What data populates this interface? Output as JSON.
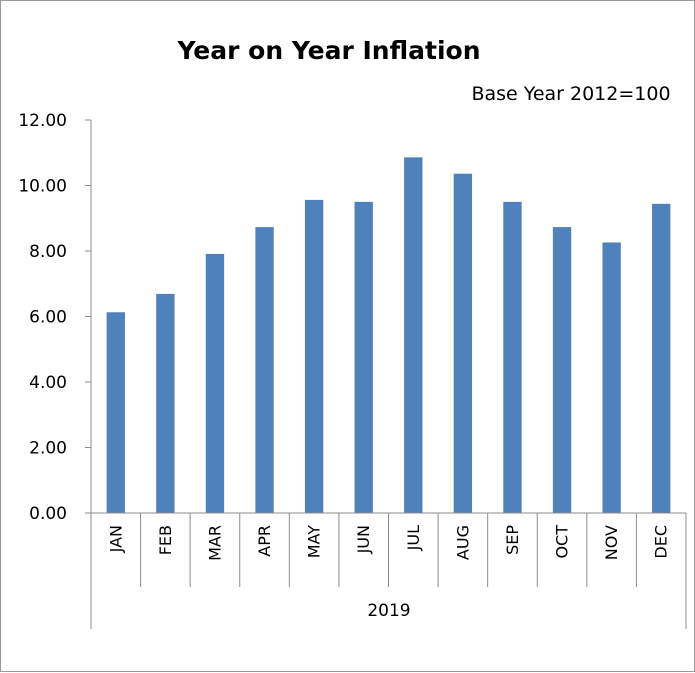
{
  "chart_data": {
    "type": "bar",
    "title": "Year on Year Inflation",
    "subtitle": "Base Year 2012=100",
    "categories": [
      "JAN",
      "FEB",
      "MAR",
      "APR",
      "MAY",
      "JUN",
      "JUL",
      "AUG",
      "SEP",
      "OCT",
      "NOV",
      "DEC"
    ],
    "group_label": "2019",
    "values": [
      6.13,
      6.69,
      7.91,
      8.73,
      9.56,
      9.5,
      10.86,
      10.36,
      9.5,
      8.73,
      8.26,
      9.44
    ],
    "yticks": [
      "0.00",
      "2.00",
      "4.00",
      "6.00",
      "8.00",
      "10.00",
      "12.00"
    ],
    "ylim": [
      0,
      12
    ],
    "bar_color": "#4f81bd",
    "grid": false,
    "legend": "none"
  }
}
